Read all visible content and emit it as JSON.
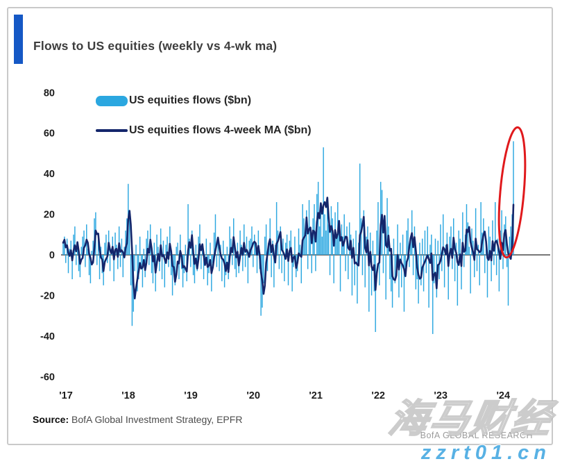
{
  "card": {
    "title": "Flows to US equities (weekly vs 4-wk ma)",
    "accent_color": "#1558c5",
    "border_color": "#c9c9c9"
  },
  "legend": [
    {
      "type": "bar",
      "label": "US equities flows ($bn)",
      "color": "#2ba7e0"
    },
    {
      "type": "line",
      "label": "US equities flows 4-week MA ($bn)",
      "color": "#14266b"
    }
  ],
  "source": {
    "prefix": "Source:",
    "text": " BofA Global Investment Strategy, EPFR"
  },
  "branding": "BofA GLOBAL RESEARCH",
  "watermarks": {
    "cn": "海马财经",
    "url": "zzrt01.cn"
  },
  "chart_data": {
    "type": "bar",
    "title": "Flows to US equities (weekly vs 4-wk ma)",
    "unit": "$bn",
    "grid": false,
    "legend_position": "top-left",
    "ylim": [
      -60,
      80
    ],
    "y_ticks": [
      80,
      60,
      40,
      20,
      0,
      -20,
      -40,
      -60
    ],
    "x_tick_labels": [
      "'17",
      "'18",
      "'19",
      "'20",
      "'21",
      "'22",
      "'23",
      "'24"
    ],
    "zero_line_color": "#4a4a4a",
    "annotation": {
      "shape": "ellipse",
      "color": "#e0191c",
      "target": "final weekly bar",
      "circled_value_bn": 56
    },
    "series": [
      {
        "name": "US equities flows ($bn)",
        "type": "bar",
        "color": "#2ba7e0"
      },
      {
        "name": "US equities flows 4-week MA ($bn)",
        "type": "line",
        "color": "#14266b",
        "derived": "4-week trailing moving average of the weekly values"
      }
    ],
    "years": [
      {
        "label": "'17",
        "values": [
          6,
          9,
          -4,
          8,
          -9,
          3,
          7,
          -12,
          10,
          14,
          -5,
          6,
          -8,
          -11,
          4,
          9,
          12,
          -6,
          15,
          3,
          -10,
          -14,
          2,
          7,
          18,
          21,
          -5,
          8,
          -12,
          4,
          -9,
          -15,
          6,
          10,
          -4,
          12,
          -8,
          3,
          9,
          -13,
          11,
          5,
          -7,
          14,
          -6,
          8,
          -11,
          4
        ]
      },
      {
        "label": "'18",
        "values": [
          12,
          18,
          35,
          22,
          -15,
          -35,
          -28,
          -8,
          5,
          -18,
          -12,
          9,
          -6,
          -16,
          3,
          -11,
          8,
          12,
          -5,
          15,
          -9,
          -14,
          6,
          -18,
          10,
          4,
          -8,
          13,
          -12,
          7,
          -16,
          5,
          9,
          -6,
          14,
          -10,
          -20,
          -8,
          -15,
          4,
          6,
          -12,
          10,
          -7,
          -16,
          -9,
          5,
          -13
        ]
      },
      {
        "label": "'19",
        "values": [
          25,
          8,
          -6,
          12,
          -10,
          -14,
          5,
          -8,
          9,
          15,
          -7,
          4,
          -12,
          -5,
          8,
          -15,
          -9,
          6,
          -18,
          -4,
          11,
          20,
          -6,
          9,
          -8,
          5,
          -13,
          7,
          -16,
          -10,
          4,
          -12,
          14,
          8,
          -5,
          18,
          -7,
          -11,
          6,
          -9,
          12,
          5,
          -8,
          15,
          -6,
          9,
          -14,
          7
        ]
      },
      {
        "label": "'20",
        "values": [
          8,
          14,
          -6,
          10,
          5,
          -9,
          12,
          -7,
          -30,
          -26,
          -14,
          9,
          15,
          -8,
          6,
          18,
          -11,
          7,
          -16,
          5,
          26,
          12,
          -7,
          14,
          -9,
          8,
          -13,
          6,
          10,
          -15,
          7,
          12,
          -18,
          -6,
          9,
          -11,
          -8,
          13,
          5,
          -14,
          25,
          18,
          9,
          22,
          -7,
          27,
          12,
          -9
        ]
      },
      {
        "label": "'21",
        "values": [
          18,
          25,
          -8,
          30,
          36,
          14,
          22,
          9,
          53,
          20,
          12,
          28,
          15,
          -10,
          24,
          18,
          -14,
          21,
          8,
          26,
          12,
          -18,
          15,
          9,
          20,
          -8,
          14,
          -12,
          16,
          10,
          -20,
          8,
          -15,
          12,
          -24,
          6,
          45,
          18,
          -10,
          22,
          -16,
          9,
          14,
          -28,
          11,
          -20,
          7,
          -18
        ]
      },
      {
        "label": "'22",
        "values": [
          -38,
          12,
          26,
          -15,
          36,
          32,
          -9,
          18,
          -22,
          28,
          14,
          -12,
          -18,
          -26,
          8,
          -14,
          -9,
          15,
          -21,
          6,
          -16,
          10,
          -28,
          -8,
          12,
          18,
          -6,
          9,
          22,
          -10,
          14,
          -17,
          -12,
          -24,
          6,
          -15,
          8,
          -18,
          12,
          -9,
          14,
          -26,
          5,
          10,
          -39,
          -14,
          8,
          -21
        ]
      },
      {
        "label": "'23",
        "values": [
          7,
          -12,
          15,
          -8,
          20,
          -16,
          5,
          11,
          -22,
          9,
          14,
          -7,
          18,
          -13,
          6,
          -25,
          12,
          8,
          -17,
          21,
          -6,
          10,
          25,
          16,
          4,
          -19,
          13,
          7,
          -11,
          23,
          -8,
          5,
          -15,
          26,
          11,
          18,
          -9,
          6,
          -21,
          14,
          9,
          -13,
          17,
          -5,
          26,
          -10,
          8,
          -18
        ]
      },
      {
        "label": "'24",
        "values": [
          12,
          22,
          -7,
          15,
          19,
          -6,
          -25,
          9,
          14,
          20,
          56
        ]
      }
    ]
  }
}
